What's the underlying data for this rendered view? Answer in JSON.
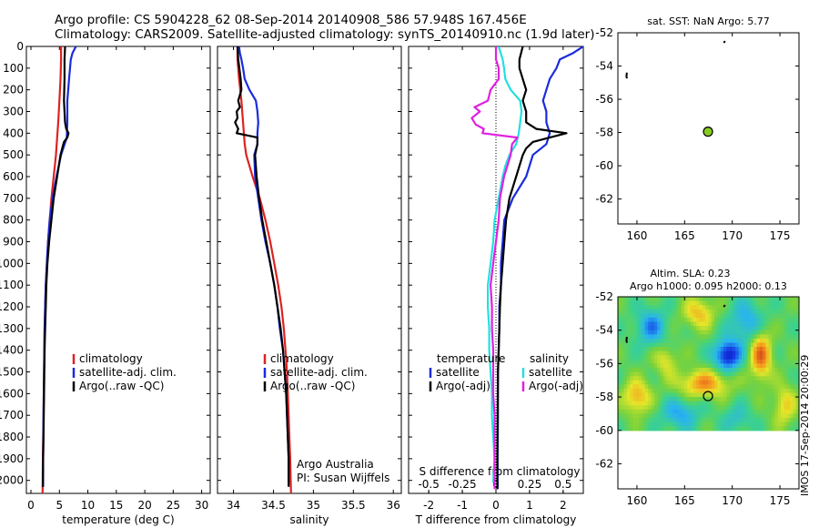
{
  "header": {
    "line1": "Argo profile: CS 5904228_62 08-Sep-2014 20140908_586 57.948S 167.456E",
    "line2": "Climatology: CARS2009. Satellite-adjusted climatology: synTS_20140910.nc (1.9d later)"
  },
  "colors": {
    "climatology": "#dd2222",
    "satellite": "#1a2bdc",
    "argo": "#000000",
    "satellite_s": "#22e0e0",
    "argo_s": "#e020e0",
    "marker": "#88cc22"
  },
  "depth_axis": {
    "ticks": [
      0,
      100,
      200,
      300,
      400,
      500,
      600,
      700,
      800,
      900,
      1000,
      1100,
      1200,
      1300,
      1400,
      1500,
      1600,
      1700,
      1800,
      1900,
      2000
    ],
    "ylim": [
      0,
      2060
    ]
  },
  "chart_data": [
    {
      "id": "temperature",
      "type": "line",
      "xlabel": "temperature (deg C)",
      "xlim": [
        -0.8,
        31.5
      ],
      "xticks": [
        0,
        5,
        10,
        15,
        20,
        25,
        30
      ],
      "ylim": [
        0,
        2060
      ],
      "legend": {
        "placement": "middle-left",
        "entries": [
          "climatology",
          "satellite-adj. clim.",
          "Argo(..raw -QC)"
        ]
      },
      "series": [
        {
          "name": "climatology",
          "color": "#dd2222",
          "depth": [
            0,
            60,
            150,
            250,
            350,
            420,
            500,
            600,
            700,
            800,
            900,
            1000,
            1100,
            1200,
            1300,
            1400,
            1500,
            1700,
            1900,
            2060
          ],
          "values": [
            5.3,
            5.3,
            5.2,
            5.0,
            4.8,
            4.6,
            4.4,
            4.0,
            3.6,
            3.3,
            3.0,
            2.8,
            2.6,
            2.5,
            2.4,
            2.35,
            2.3,
            2.2,
            2.1,
            2.05
          ]
        },
        {
          "name": "satellite-adj. clim.",
          "color": "#1a2bdc",
          "depth": [
            0,
            30,
            60,
            150,
            250,
            350,
            420,
            500,
            600,
            700,
            800,
            900,
            1000,
            1100,
            1200,
            1300,
            1400,
            1500,
            1700,
            1900,
            2030
          ],
          "values": [
            7.9,
            7.3,
            7.0,
            6.7,
            6.4,
            6.4,
            6.3,
            5.3,
            4.5,
            3.8,
            3.3,
            3.0,
            2.8,
            2.6,
            2.5,
            2.4,
            2.35,
            2.3,
            2.2,
            2.15,
            2.15
          ]
        },
        {
          "name": "Argo(..raw -QC)",
          "color": "#000000",
          "depth": [
            0,
            60,
            150,
            250,
            300,
            350,
            380,
            400,
            420,
            440,
            460,
            500,
            600,
            700,
            800,
            900,
            1000,
            1100,
            1200,
            1300,
            1400,
            1500,
            1600,
            1700,
            1800,
            1900,
            2030
          ],
          "values": [
            6.0,
            5.9,
            5.9,
            5.8,
            5.9,
            6.0,
            6.2,
            6.6,
            6.4,
            5.8,
            5.6,
            5.2,
            4.6,
            4.0,
            3.6,
            3.2,
            2.9,
            2.7,
            2.6,
            2.5,
            2.4,
            2.35,
            2.3,
            2.25,
            2.2,
            2.15,
            2.1
          ]
        }
      ]
    },
    {
      "id": "salinity",
      "type": "line",
      "xlabel": "salinity",
      "xlim": [
        33.8,
        36.1
      ],
      "xticks": [
        34,
        34.5,
        35,
        35.5,
        36
      ],
      "ylim": [
        0,
        2060
      ],
      "legend": {
        "placement": "middle-left",
        "entries": [
          "climatology",
          "satellite-adj. clim.",
          "Argo(..raw -QC)"
        ]
      },
      "annotation": [
        "Argo Australia",
        "PI: Susan Wijffels"
      ],
      "series": [
        {
          "name": "climatology",
          "color": "#dd2222",
          "depth": [
            0,
            60,
            150,
            250,
            350,
            450,
            500,
            600,
            700,
            800,
            900,
            1000,
            1100,
            1200,
            1300,
            1400,
            1500,
            1600,
            1700,
            1800,
            1900,
            2060
          ],
          "values": [
            34.05,
            34.05,
            34.07,
            34.1,
            34.12,
            34.14,
            34.16,
            34.24,
            34.33,
            34.4,
            34.46,
            34.51,
            34.56,
            34.6,
            34.63,
            34.65,
            34.67,
            34.68,
            34.69,
            34.7,
            34.71,
            34.72
          ]
        },
        {
          "name": "satellite-adj. clim.",
          "color": "#1a2bdc",
          "depth": [
            0,
            30,
            60,
            100,
            150,
            200,
            250,
            300,
            350,
            400,
            450,
            500,
            600,
            700,
            800,
            900,
            1000,
            1100,
            1200,
            1300,
            1400,
            1500,
            1600,
            1700,
            1800,
            1900,
            2010
          ],
          "values": [
            34.07,
            34.08,
            34.1,
            34.12,
            34.14,
            34.2,
            34.28,
            34.3,
            34.31,
            34.3,
            34.3,
            34.26,
            34.27,
            34.31,
            34.35,
            34.4,
            34.46,
            34.51,
            34.55,
            34.58,
            34.62,
            34.64,
            34.66,
            34.67,
            34.68,
            34.69,
            34.69
          ]
        },
        {
          "name": "Argo(..raw -QC)",
          "color": "#000000",
          "depth": [
            0,
            60,
            150,
            200,
            250,
            280,
            300,
            330,
            350,
            380,
            400,
            420,
            450,
            500,
            600,
            700,
            800,
            900,
            1000,
            1100,
            1200,
            1300,
            1400,
            1500,
            1600,
            1700,
            1800,
            1900,
            2030
          ],
          "values": [
            34.05,
            34.06,
            34.09,
            34.1,
            34.06,
            34.08,
            34.04,
            34.05,
            34.02,
            34.06,
            34.04,
            34.3,
            34.3,
            34.27,
            34.29,
            34.32,
            34.36,
            34.41,
            34.46,
            34.51,
            34.55,
            34.59,
            34.62,
            34.64,
            34.66,
            34.67,
            34.68,
            34.69,
            34.69
          ]
        }
      ]
    },
    {
      "id": "differences",
      "type": "line",
      "xlabel": "T difference from climatology",
      "xlim": [
        -2.6,
        2.6
      ],
      "xticks": [
        -2,
        -1,
        0,
        1,
        2
      ],
      "xlabel2": "S difference from climatology",
      "x2ticks": [
        -0.5,
        -0.25,
        0,
        0.25,
        0.5
      ],
      "x2ticklabels": [
        "-0.5",
        "-0.25",
        "0",
        "0.25",
        "0.5"
      ],
      "ylim": [
        0,
        2060
      ],
      "legend": {
        "placement": "middle",
        "temperature_title": "temperature",
        "salinity_title": "salinity",
        "temperature_entries": [
          "satellite",
          "Argo(-adj)"
        ],
        "salinity_entries": [
          "satellite",
          "Argo(-adj)"
        ]
      },
      "series": [
        {
          "name": "T satellite",
          "color": "#1a2bdc",
          "depth": [
            0,
            30,
            60,
            100,
            150,
            200,
            250,
            300,
            350,
            400,
            450,
            500,
            600,
            700,
            800,
            900,
            1000,
            1100,
            1200,
            1300,
            1400,
            1500,
            1700,
            1900,
            2040
          ],
          "values": [
            2.6,
            2.3,
            1.9,
            1.8,
            1.6,
            1.5,
            1.4,
            1.5,
            1.5,
            1.6,
            1.5,
            1.1,
            0.9,
            0.5,
            0.25,
            0.2,
            0.15,
            0.15,
            0.1,
            0.1,
            0.08,
            0.06,
            0.06,
            0.05,
            0.05
          ]
        },
        {
          "name": "T Argo(-adj)",
          "color": "#000000",
          "depth": [
            0,
            60,
            100,
            150,
            200,
            250,
            300,
            350,
            380,
            400,
            420,
            440,
            470,
            500,
            600,
            700,
            800,
            900,
            1000,
            1100,
            1200,
            1300,
            1400,
            1500,
            1700,
            1900,
            2040
          ],
          "values": [
            0.8,
            0.7,
            0.7,
            0.8,
            0.9,
            0.8,
            0.9,
            0.9,
            1.2,
            2.1,
            1.6,
            1.1,
            0.9,
            0.8,
            0.6,
            0.4,
            0.3,
            0.25,
            0.2,
            0.15,
            0.12,
            0.1,
            0.08,
            0.06,
            0.05,
            0.04,
            0.04
          ]
        },
        {
          "name": "S satellite",
          "color": "#22e0e0",
          "depth": [
            0,
            60,
            100,
            150,
            200,
            250,
            300,
            350,
            400,
            450,
            500,
            550,
            600,
            700,
            800,
            900,
            1000,
            1100,
            1200,
            1300,
            1400,
            1500,
            1600,
            1700,
            1800,
            1900,
            2010
          ],
          "values": [
            0.02,
            0.05,
            0.06,
            0.07,
            0.11,
            0.18,
            0.19,
            0.18,
            0.17,
            0.15,
            0.1,
            0.07,
            0.05,
            0.02,
            -0.01,
            -0.02,
            -0.04,
            -0.06,
            -0.06,
            -0.05,
            -0.05,
            -0.04,
            -0.03,
            -0.03,
            -0.02,
            -0.01,
            -0.02
          ]
        },
        {
          "name": "S Argo(-adj)",
          "color": "#e020e0",
          "depth": [
            0,
            60,
            100,
            150,
            200,
            250,
            280,
            300,
            330,
            360,
            380,
            400,
            420,
            450,
            500,
            600,
            700,
            800,
            900,
            1000,
            1100,
            1200,
            1300,
            1400,
            1500,
            1600,
            1700,
            1800,
            1900,
            2040
          ],
          "values": [
            0.0,
            0.0,
            0.02,
            0.02,
            -0.04,
            -0.06,
            -0.16,
            -0.12,
            -0.18,
            -0.15,
            -0.09,
            -0.1,
            0.16,
            0.12,
            0.11,
            0.06,
            0.03,
            0.02,
            0.0,
            -0.02,
            -0.04,
            -0.03,
            -0.03,
            -0.02,
            -0.02,
            -0.02,
            -0.01,
            -0.01,
            -0.01,
            -0.01
          ]
        }
      ]
    },
    {
      "id": "map-sst",
      "type": "scatter",
      "title": "sat. SST: NaN  Argo: 5.77",
      "xlim": [
        158,
        177
      ],
      "ylim": [
        -63.5,
        -52
      ],
      "xticks": [
        160,
        165,
        170,
        175
      ],
      "yticks": [
        -52,
        -54,
        -56,
        -58,
        -60,
        -62
      ],
      "points": [
        {
          "lon": 167.456,
          "lat": -57.948,
          "label": "Argo profile position"
        }
      ],
      "coast": [
        {
          "lon": [
            169.1,
            169.25
          ],
          "lat": [
            -52.6,
            -52.5
          ]
        },
        {
          "lon": [
            158.95,
            158.9,
            158.95
          ],
          "lat": [
            -54.4,
            -54.6,
            -54.75
          ]
        }
      ]
    },
    {
      "id": "map-sla",
      "type": "heatmap",
      "title_line1": "Altim. SLA: 0.23",
      "title_line2": "Argo h1000: 0.095  h2000: 0.13",
      "xlim": [
        158,
        177
      ],
      "ylim": [
        -63.5,
        -52
      ],
      "data_lat_range": [
        -60,
        -52
      ],
      "xticks": [
        160,
        165,
        170,
        175
      ],
      "yticks": [
        -52,
        -54,
        -56,
        -58,
        -60,
        -62
      ],
      "blobs": [
        {
          "lon": 169.5,
          "lat": -55.5,
          "r_lon": 1.4,
          "r_lat": 0.9,
          "v": -0.6
        },
        {
          "lon": 161.5,
          "lat": -53.8,
          "r_lon": 1.6,
          "r_lat": 1.1,
          "v": -0.35
        },
        {
          "lon": 171.5,
          "lat": -53.5,
          "r_lon": 1.8,
          "r_lat": 1.3,
          "v": -0.3
        },
        {
          "lon": 164.5,
          "lat": -59.0,
          "r_lon": 2.0,
          "r_lat": 0.9,
          "v": -0.3
        },
        {
          "lon": 173.0,
          "lat": -55.5,
          "r_lon": 1.1,
          "r_lat": 1.4,
          "v": 0.55
        },
        {
          "lon": 167.0,
          "lat": -57.2,
          "r_lon": 2.6,
          "r_lat": 0.8,
          "v": 0.45
        },
        {
          "lon": 160.0,
          "lat": -58.0,
          "r_lon": 1.4,
          "r_lat": 1.0,
          "v": 0.4
        },
        {
          "lon": 166.5,
          "lat": -53.0,
          "r_lon": 1.6,
          "r_lat": 0.9,
          "v": 0.35
        },
        {
          "lon": 175.5,
          "lat": -58.5,
          "r_lon": 1.2,
          "r_lat": 1.2,
          "v": 0.3
        },
        {
          "lon": 163.0,
          "lat": -55.8,
          "r_lon": 1.2,
          "r_lat": 0.9,
          "v": 0.25
        },
        {
          "lon": 170.5,
          "lat": -59.3,
          "r_lon": 1.5,
          "r_lat": 0.8,
          "v": -0.2
        }
      ],
      "points": [
        {
          "lon": 167.456,
          "lat": -57.948,
          "label": "Argo profile position"
        }
      ],
      "coast": [
        {
          "lon": [
            169.1,
            169.25
          ],
          "lat": [
            -52.6,
            -52.5
          ]
        },
        {
          "lon": [
            158.95,
            158.9,
            158.95
          ],
          "lat": [
            -54.4,
            -54.6,
            -54.75
          ]
        }
      ]
    }
  ],
  "footer": "IMOS 17-Sep-2014 20:00:29"
}
